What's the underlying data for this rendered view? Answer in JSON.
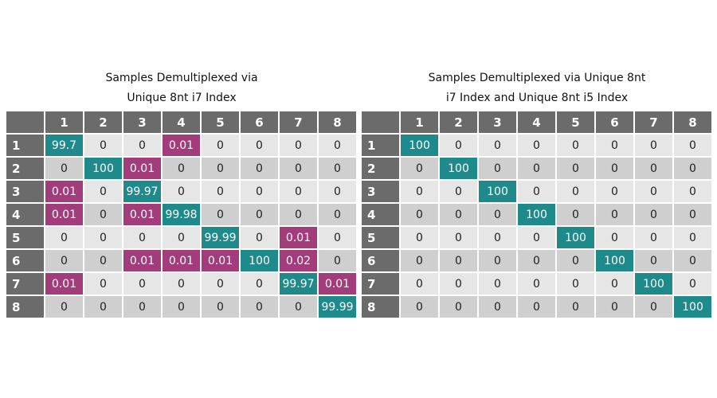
{
  "colors": {
    "header": "#6b6b6b",
    "diagonal": "#1f8a8c",
    "offdiagonal": "#a23c7a",
    "row_light": "#e6e6e6",
    "row_dark": "#cfcfcf"
  },
  "chart_data": [
    {
      "type": "heatmap",
      "title_lines": [
        "Samples Demultiplexed via",
        "Unique 8nt i7 Index"
      ],
      "columns": [
        "1",
        "2",
        "3",
        "4",
        "5",
        "6",
        "7",
        "8"
      ],
      "rows": [
        "1",
        "2",
        "3",
        "4",
        "5",
        "6",
        "7",
        "8"
      ],
      "values": [
        [
          "99.7",
          "0",
          "0",
          "0.01",
          "0",
          "0",
          "0",
          "0"
        ],
        [
          "0",
          "100",
          "0.01",
          "0",
          "0",
          "0",
          "0",
          "0"
        ],
        [
          "0.01",
          "0",
          "99.97",
          "0",
          "0",
          "0",
          "0",
          "0"
        ],
        [
          "0.01",
          "0",
          "0.01",
          "99.98",
          "0",
          "0",
          "0",
          "0"
        ],
        [
          "0",
          "0",
          "0",
          "0",
          "99.99",
          "0",
          "0.01",
          "0"
        ],
        [
          "0",
          "0",
          "0.01",
          "0.01",
          "0.01",
          "100",
          "0.02",
          "0"
        ],
        [
          "0.01",
          "0",
          "0",
          "0",
          "0",
          "0",
          "99.97",
          "0.01"
        ],
        [
          "0",
          "0",
          "0",
          "0",
          "0",
          "0",
          "0",
          "99.99"
        ]
      ]
    },
    {
      "type": "heatmap",
      "title_lines": [
        "Samples Demultiplexed via Unique 8nt",
        "i7 Index and Unique 8nt i5 Index"
      ],
      "columns": [
        "1",
        "2",
        "3",
        "4",
        "5",
        "6",
        "7",
        "8"
      ],
      "rows": [
        "1",
        "2",
        "3",
        "4",
        "5",
        "6",
        "7",
        "8"
      ],
      "values": [
        [
          "100",
          "0",
          "0",
          "0",
          "0",
          "0",
          "0",
          "0"
        ],
        [
          "0",
          "100",
          "0",
          "0",
          "0",
          "0",
          "0",
          "0"
        ],
        [
          "0",
          "0",
          "100",
          "0",
          "0",
          "0",
          "0",
          "0"
        ],
        [
          "0",
          "0",
          "0",
          "100",
          "0",
          "0",
          "0",
          "0"
        ],
        [
          "0",
          "0",
          "0",
          "0",
          "100",
          "0",
          "0",
          "0"
        ],
        [
          "0",
          "0",
          "0",
          "0",
          "0",
          "100",
          "0",
          "0"
        ],
        [
          "0",
          "0",
          "0",
          "0",
          "0",
          "0",
          "100",
          "0"
        ],
        [
          "0",
          "0",
          "0",
          "0",
          "0",
          "0",
          "0",
          "100"
        ]
      ]
    }
  ]
}
